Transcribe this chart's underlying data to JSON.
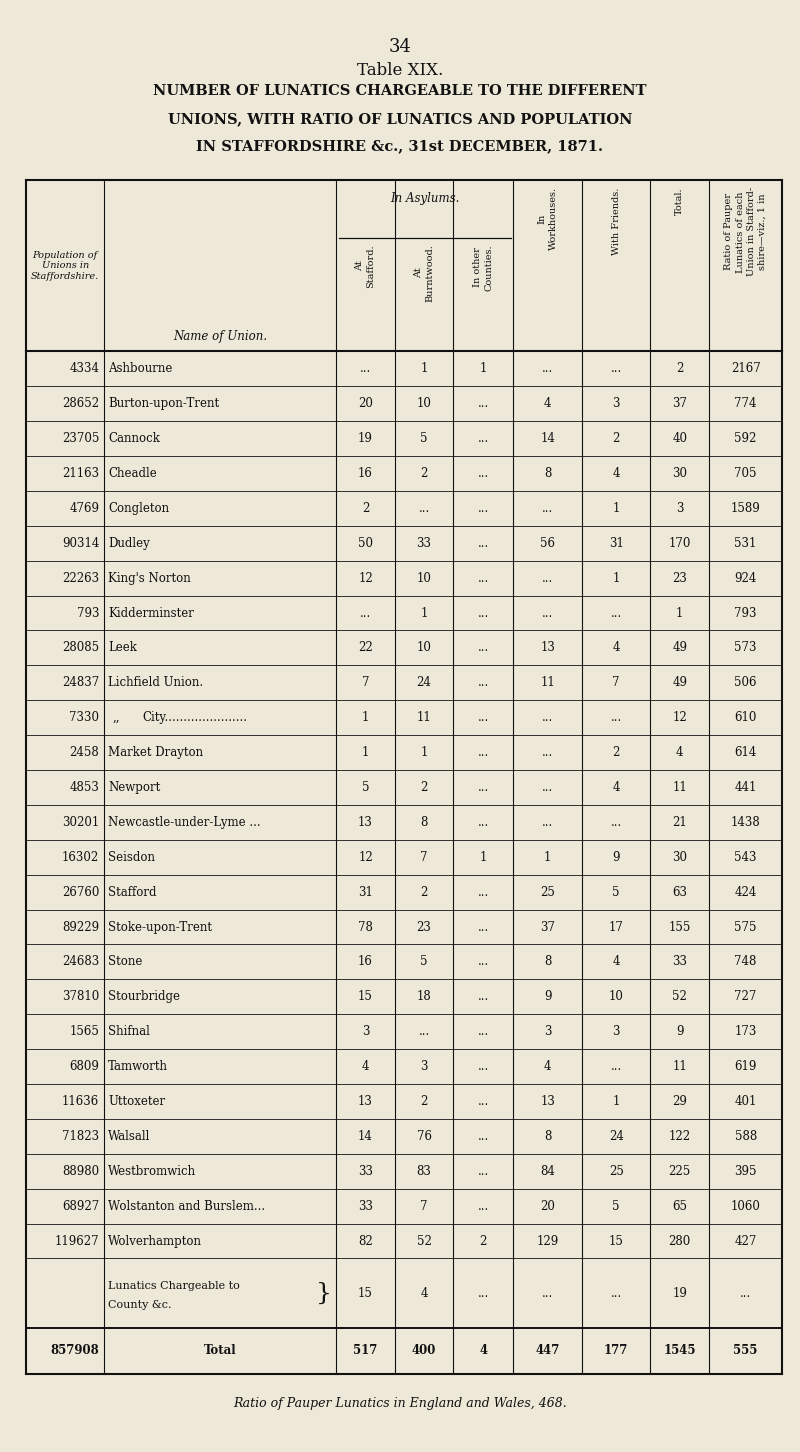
{
  "page_number": "34",
  "table_title": "Table XIX.",
  "subtitle_lines": [
    "NUMBER OF LUNATICS CHARGEABLE TO THE DIFFERENT",
    "UNIONS, WITH RATIO OF LUNATICS AND POPULATION",
    "IN STAFFORDSHIRE &c., 31st DECEMBER, 1871."
  ],
  "in_asylums_label": "In Asylums.",
  "col0_header": "Population of\nUnions in\nStaffordshire.",
  "col1_header": "Name of Union.",
  "col_headers_rotated": [
    "At\nStafford.",
    "At\nBurntwood.",
    "In other\nCounties.",
    "In\nWorkhouses.",
    "With Friends.",
    "Total.",
    "Ratio of Pauper\nLunatics of each\nUnion in Stafford-\nshire—viz., 1 in"
  ],
  "rows": [
    [
      "4334",
      "Ashbourne",
      "...",
      "1",
      "1",
      "...",
      "...",
      "2",
      "2167"
    ],
    [
      "28652",
      "Burton-upon-Trent",
      "20",
      "10",
      "...",
      "4",
      "3",
      "37",
      "774"
    ],
    [
      "23705",
      "Cannock",
      "19",
      "5",
      "...",
      "14",
      "2",
      "40",
      "592"
    ],
    [
      "21163",
      "Cheadle",
      "16",
      "2",
      "...",
      "8",
      "4",
      "30",
      "705"
    ],
    [
      "4769",
      "Congleton",
      "2",
      "...",
      "...",
      "...",
      "1",
      "3",
      "1589"
    ],
    [
      "90314",
      "Dudley",
      "50",
      "33",
      "...",
      "56",
      "31",
      "170",
      "531"
    ],
    [
      "22263",
      "King's Norton",
      "12",
      "10",
      "...",
      "...",
      "1",
      "23",
      "924"
    ],
    [
      "793",
      "Kidderminster",
      "...",
      "1",
      "...",
      "...",
      "...",
      "1",
      "793"
    ],
    [
      "28085",
      "Leek",
      "22",
      "10",
      "...",
      "13",
      "4",
      "49",
      "573"
    ],
    [
      "24837",
      "Lichfield Union.",
      "7",
      "24",
      "...",
      "11",
      "7",
      "49",
      "506"
    ],
    [
      "7330",
      "„        City",
      "1",
      "11",
      "...",
      "...",
      "...",
      "12",
      "610"
    ],
    [
      "2458",
      "Market Drayton",
      "1",
      "1",
      "...",
      "...",
      "2",
      "4",
      "614"
    ],
    [
      "4853",
      "Newport",
      "5",
      "2",
      "...",
      "...",
      "4",
      "11",
      "441"
    ],
    [
      "30201",
      "Newcastle-under-Lyme ...",
      "13",
      "8",
      "...",
      "...",
      "...",
      "21",
      "1438"
    ],
    [
      "16302",
      "Seisdon",
      "12",
      "7",
      "1",
      "1",
      "9",
      "30",
      "543"
    ],
    [
      "26760",
      "Stafford",
      "31",
      "2",
      "...",
      "25",
      "5",
      "63",
      "424"
    ],
    [
      "89229",
      "Stoke-upon-Trent",
      "78",
      "23",
      "...",
      "37",
      "17",
      "155",
      "575"
    ],
    [
      "24683",
      "Stone",
      "16",
      "5",
      "...",
      "8",
      "4",
      "33",
      "748"
    ],
    [
      "37810",
      "Stourbridge",
      "15",
      "18",
      "...",
      "9",
      "10",
      "52",
      "727"
    ],
    [
      "1565",
      "Shifnal",
      "3",
      "...",
      "...",
      "3",
      "3",
      "9",
      "173"
    ],
    [
      "6809",
      "Tamworth",
      "4",
      "3",
      "...",
      "4",
      "...",
      "11",
      "619"
    ],
    [
      "11636",
      "Uttoxeter",
      "13",
      "2",
      "...",
      "13",
      "1",
      "29",
      "401"
    ],
    [
      "71823",
      "Walsall",
      "14",
      "76",
      "...",
      "8",
      "24",
      "122",
      "588"
    ],
    [
      "88980",
      "Westbromwich",
      "33",
      "83",
      "...",
      "84",
      "25",
      "225",
      "395"
    ],
    [
      "68927",
      "Wolstanton and Burslem...",
      "33",
      "7",
      "...",
      "20",
      "5",
      "65",
      "1060"
    ],
    [
      "119627",
      "Wolverhampton",
      "82",
      "52",
      "2",
      "129",
      "15",
      "280",
      "427"
    ],
    [
      "",
      "LUNATICS_CHARGEABLE",
      "15",
      "4",
      "...",
      "...",
      "...",
      "19",
      "..."
    ],
    [
      "857908",
      "Total",
      "517",
      "400",
      "4",
      "447",
      "177",
      "1545",
      "555"
    ]
  ],
  "footer": "Ratio of Pauper Lunatics in England and Wales, 468.",
  "bg_color": "#ede8d8",
  "text_color": "#111111",
  "line_color": "#111111"
}
